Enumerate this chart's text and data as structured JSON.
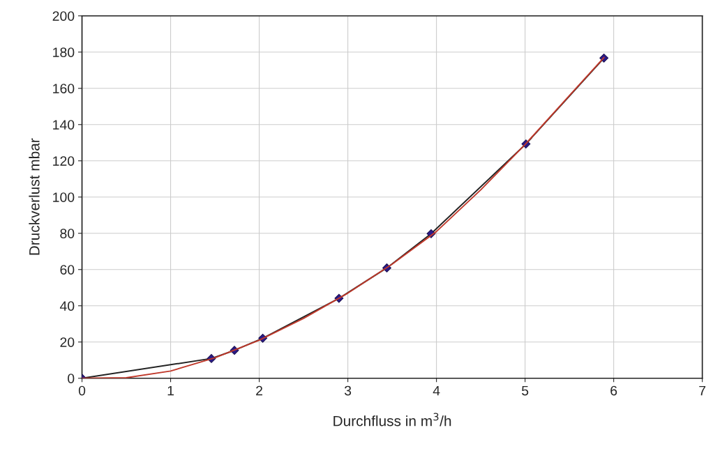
{
  "chart_data": {
    "type": "line",
    "xlabel": "Durchfluss in m$^{3}$/h",
    "ylabel": "Druckverlust mbar",
    "xlim": [
      0,
      7
    ],
    "xticks": [
      0,
      1,
      2,
      3,
      4,
      5,
      6,
      7
    ],
    "ylim": [
      0,
      200
    ],
    "yticks": [
      0,
      20,
      40,
      60,
      80,
      100,
      120,
      140,
      160,
      180,
      200
    ],
    "grid": true,
    "legend": false,
    "series": [
      {
        "color": "#222222",
        "marker": "diamond",
        "x": [
          0,
          1.46,
          1.72,
          2.04,
          2.9,
          3.44,
          3.94,
          5.01,
          5.89
        ],
        "values": [
          0,
          10.9,
          15.4,
          22.1,
          44.1,
          60.9,
          79.8,
          129.3,
          176.7
        ]
      },
      {
        "color": "#c0392b",
        "marker": "none",
        "x": [
          0,
          0.5,
          1,
          1.5,
          2,
          2.5,
          3,
          3.5,
          4,
          4.5,
          5,
          5.5,
          5.89
        ],
        "values": [
          0,
          0.3,
          4,
          11.3,
          21,
          33,
          47,
          63,
          81,
          104,
          129,
          156,
          177
        ]
      }
    ]
  }
}
